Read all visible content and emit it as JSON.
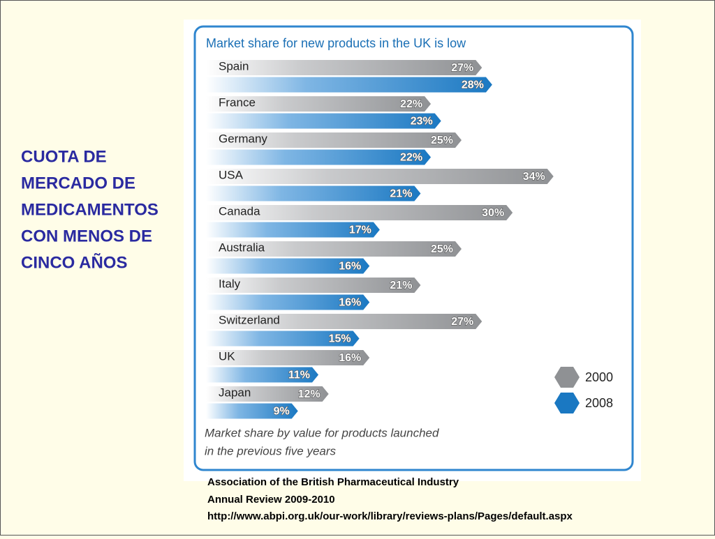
{
  "slide_title": [
    "CUOTA DE",
    "MERCADO DE",
    "MEDICAMENTOS",
    "CON MENOS DE",
    "CINCO AÑOS"
  ],
  "source": [
    "Association of the British Pharmaceutical Industry",
    "Annual Review 2009-2010",
    "http://www.abpi.org.uk/our-work/library/reviews-plans/Pages/default.aspx"
  ],
  "chart_data": {
    "type": "bar",
    "orientation": "horizontal",
    "title": "Market share for new products in the UK is low",
    "note": [
      "Market share by value for products launched",
      "in the previous five years"
    ],
    "categories": [
      "Spain",
      "France",
      "Germany",
      "USA",
      "Canada",
      "Australia",
      "Italy",
      "Switzerland",
      "UK",
      "Japan"
    ],
    "series": [
      {
        "name": "2000",
        "color": "#8f9194",
        "values": [
          27,
          22,
          25,
          34,
          30,
          25,
          21,
          27,
          16,
          12
        ],
        "value_labels": [
          "27%",
          "22%",
          "25%",
          "34%",
          "30%",
          "25%",
          "21%",
          "27%",
          "16%",
          "12%"
        ]
      },
      {
        "name": "2008",
        "color": "#1a78c2",
        "values": [
          28,
          23,
          22,
          21,
          17,
          16,
          16,
          15,
          11,
          9
        ],
        "value_labels": [
          "28%",
          "23%",
          "22%",
          "21%",
          "17%",
          "16%",
          "16%",
          "15%",
          "11%",
          "9%"
        ]
      }
    ],
    "legend": "lower-right"
  }
}
